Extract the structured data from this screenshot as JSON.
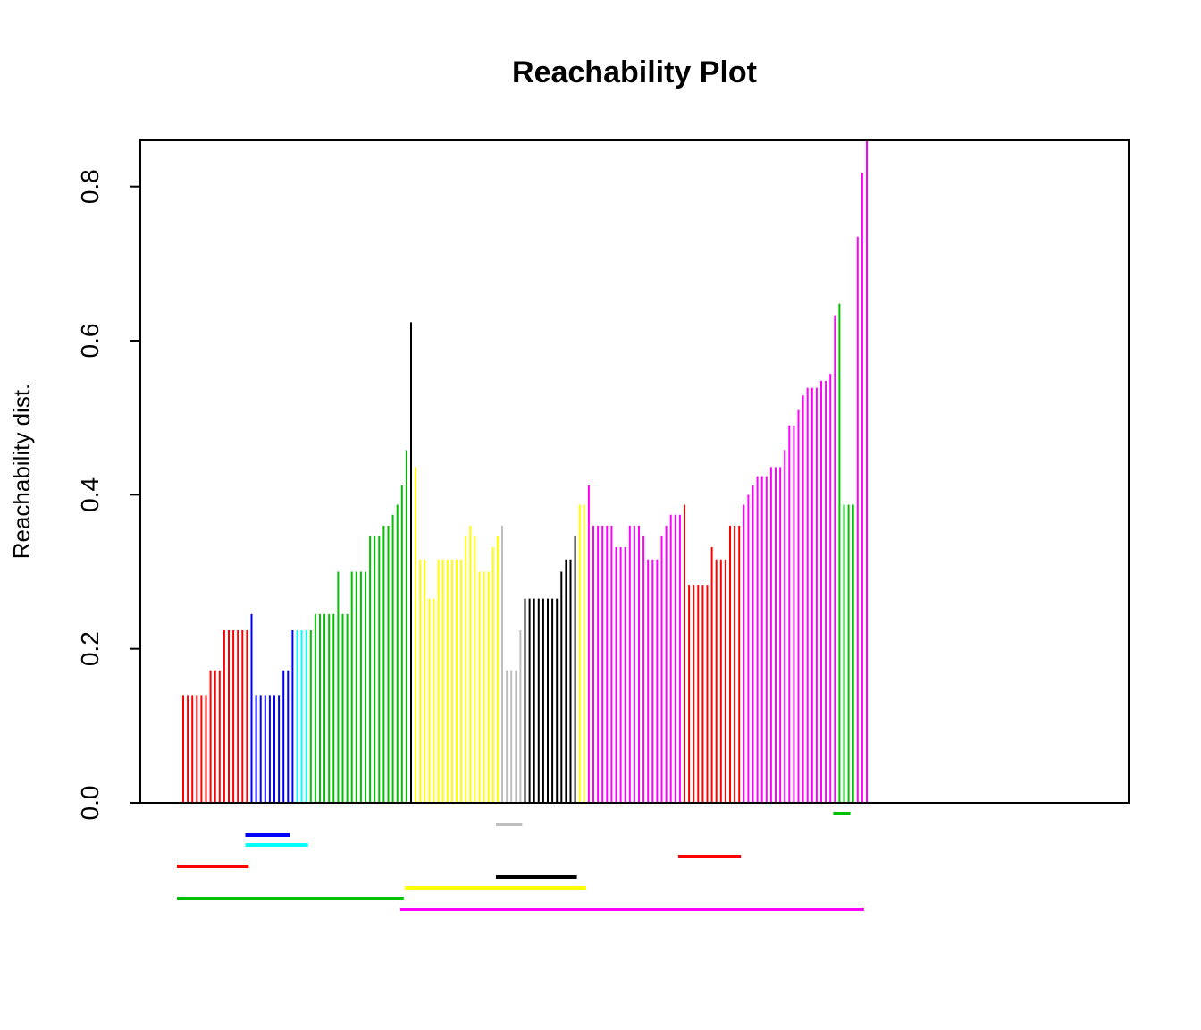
{
  "chart_data": {
    "type": "bar",
    "title": "Reachability Plot",
    "xlabel": "",
    "ylabel": "Reachability dist.",
    "ylim": [
      0,
      0.86
    ],
    "yticks": [
      0.0,
      0.2,
      0.4,
      0.6,
      0.8
    ],
    "ytick_labels": [
      "0.0",
      "0.2",
      "0.4",
      "0.6",
      "0.8"
    ],
    "grid": false,
    "n_points": 150,
    "bars": [
      {
        "c": "red",
        "v": 0.14
      },
      {
        "c": "red",
        "v": 0.14
      },
      {
        "c": "red",
        "v": 0.14
      },
      {
        "c": "red",
        "v": 0.14
      },
      {
        "c": "red",
        "v": 0.14
      },
      {
        "c": "red",
        "v": 0.14
      },
      {
        "c": "red",
        "v": 0.172
      },
      {
        "c": "red",
        "v": 0.172
      },
      {
        "c": "red",
        "v": 0.172
      },
      {
        "c": "red",
        "v": 0.224
      },
      {
        "c": "red",
        "v": 0.224
      },
      {
        "c": "red",
        "v": 0.224
      },
      {
        "c": "red",
        "v": 0.224
      },
      {
        "c": "red",
        "v": 0.224
      },
      {
        "c": "red",
        "v": 0.224
      },
      {
        "c": "blue",
        "v": 0.245
      },
      {
        "c": "blue",
        "v": 0.14
      },
      {
        "c": "blue",
        "v": 0.14
      },
      {
        "c": "blue",
        "v": 0.14
      },
      {
        "c": "blue",
        "v": 0.14
      },
      {
        "c": "blue",
        "v": 0.14
      },
      {
        "c": "blue",
        "v": 0.14
      },
      {
        "c": "blue",
        "v": 0.172
      },
      {
        "c": "blue",
        "v": 0.172
      },
      {
        "c": "blue",
        "v": 0.224
      },
      {
        "c": "cyan",
        "v": 0.224
      },
      {
        "c": "cyan",
        "v": 0.224
      },
      {
        "c": "cyan",
        "v": 0.224
      },
      {
        "c": "green",
        "v": 0.224
      },
      {
        "c": "green",
        "v": 0.245
      },
      {
        "c": "green",
        "v": 0.245
      },
      {
        "c": "green",
        "v": 0.245
      },
      {
        "c": "green",
        "v": 0.245
      },
      {
        "c": "green",
        "v": 0.245
      },
      {
        "c": "green",
        "v": 0.3
      },
      {
        "c": "green",
        "v": 0.245
      },
      {
        "c": "green",
        "v": 0.245
      },
      {
        "c": "green",
        "v": 0.3
      },
      {
        "c": "green",
        "v": 0.3
      },
      {
        "c": "green",
        "v": 0.3
      },
      {
        "c": "green",
        "v": 0.3
      },
      {
        "c": "green",
        "v": 0.346
      },
      {
        "c": "green",
        "v": 0.346
      },
      {
        "c": "green",
        "v": 0.346
      },
      {
        "c": "green",
        "v": 0.36
      },
      {
        "c": "green",
        "v": 0.36
      },
      {
        "c": "green",
        "v": 0.374
      },
      {
        "c": "green",
        "v": 0.387
      },
      {
        "c": "green",
        "v": 0.412
      },
      {
        "c": "green",
        "v": 0.458
      },
      {
        "c": "black",
        "v": 0.624
      },
      {
        "c": "yellow",
        "v": 0.436
      },
      {
        "c": "yellow",
        "v": 0.316
      },
      {
        "c": "yellow",
        "v": 0.316
      },
      {
        "c": "yellow",
        "v": 0.265
      },
      {
        "c": "yellow",
        "v": 0.265
      },
      {
        "c": "yellow",
        "v": 0.316
      },
      {
        "c": "yellow",
        "v": 0.316
      },
      {
        "c": "yellow",
        "v": 0.316
      },
      {
        "c": "yellow",
        "v": 0.316
      },
      {
        "c": "yellow",
        "v": 0.316
      },
      {
        "c": "yellow",
        "v": 0.316
      },
      {
        "c": "yellow",
        "v": 0.346
      },
      {
        "c": "yellow",
        "v": 0.36
      },
      {
        "c": "yellow",
        "v": 0.346
      },
      {
        "c": "yellow",
        "v": 0.3
      },
      {
        "c": "yellow",
        "v": 0.3
      },
      {
        "c": "yellow",
        "v": 0.3
      },
      {
        "c": "yellow",
        "v": 0.332
      },
      {
        "c": "yellow",
        "v": 0.346
      },
      {
        "c": "gray",
        "v": 0.36
      },
      {
        "c": "gray",
        "v": 0.172
      },
      {
        "c": "gray",
        "v": 0.172
      },
      {
        "c": "gray",
        "v": 0.172
      },
      {
        "c": "gray",
        "v": 0.224
      },
      {
        "c": "black",
        "v": 0.265
      },
      {
        "c": "black",
        "v": 0.265
      },
      {
        "c": "black",
        "v": 0.265
      },
      {
        "c": "black",
        "v": 0.265
      },
      {
        "c": "black",
        "v": 0.265
      },
      {
        "c": "black",
        "v": 0.265
      },
      {
        "c": "black",
        "v": 0.265
      },
      {
        "c": "black",
        "v": 0.265
      },
      {
        "c": "black",
        "v": 0.3
      },
      {
        "c": "black",
        "v": 0.316
      },
      {
        "c": "black",
        "v": 0.316
      },
      {
        "c": "black",
        "v": 0.346
      },
      {
        "c": "yellow",
        "v": 0.387
      },
      {
        "c": "yellow",
        "v": 0.387
      },
      {
        "c": "magenta",
        "v": 0.412
      },
      {
        "c": "magenta",
        "v": 0.36
      },
      {
        "c": "magenta",
        "v": 0.36
      },
      {
        "c": "magenta",
        "v": 0.36
      },
      {
        "c": "magenta",
        "v": 0.36
      },
      {
        "c": "magenta",
        "v": 0.36
      },
      {
        "c": "magenta",
        "v": 0.332
      },
      {
        "c": "magenta",
        "v": 0.332
      },
      {
        "c": "magenta",
        "v": 0.332
      },
      {
        "c": "magenta",
        "v": 0.36
      },
      {
        "c": "magenta",
        "v": 0.36
      },
      {
        "c": "magenta",
        "v": 0.36
      },
      {
        "c": "magenta",
        "v": 0.346
      },
      {
        "c": "magenta",
        "v": 0.316
      },
      {
        "c": "magenta",
        "v": 0.316
      },
      {
        "c": "magenta",
        "v": 0.316
      },
      {
        "c": "magenta",
        "v": 0.346
      },
      {
        "c": "magenta",
        "v": 0.36
      },
      {
        "c": "magenta",
        "v": 0.374
      },
      {
        "c": "magenta",
        "v": 0.374
      },
      {
        "c": "magenta",
        "v": 0.374
      },
      {
        "c": "red",
        "v": 0.387
      },
      {
        "c": "red",
        "v": 0.283
      },
      {
        "c": "red",
        "v": 0.283
      },
      {
        "c": "red",
        "v": 0.283
      },
      {
        "c": "red",
        "v": 0.283
      },
      {
        "c": "red",
        "v": 0.283
      },
      {
        "c": "red",
        "v": 0.332
      },
      {
        "c": "red",
        "v": 0.316
      },
      {
        "c": "red",
        "v": 0.316
      },
      {
        "c": "red",
        "v": 0.316
      },
      {
        "c": "red",
        "v": 0.36
      },
      {
        "c": "red",
        "v": 0.36
      },
      {
        "c": "red",
        "v": 0.36
      },
      {
        "c": "magenta",
        "v": 0.387
      },
      {
        "c": "magenta",
        "v": 0.4
      },
      {
        "c": "magenta",
        "v": 0.412
      },
      {
        "c": "magenta",
        "v": 0.424
      },
      {
        "c": "magenta",
        "v": 0.424
      },
      {
        "c": "magenta",
        "v": 0.424
      },
      {
        "c": "magenta",
        "v": 0.436
      },
      {
        "c": "magenta",
        "v": 0.436
      },
      {
        "c": "magenta",
        "v": 0.436
      },
      {
        "c": "magenta",
        "v": 0.458
      },
      {
        "c": "magenta",
        "v": 0.49
      },
      {
        "c": "magenta",
        "v": 0.49
      },
      {
        "c": "magenta",
        "v": 0.51
      },
      {
        "c": "magenta",
        "v": 0.529
      },
      {
        "c": "magenta",
        "v": 0.539
      },
      {
        "c": "magenta",
        "v": 0.539
      },
      {
        "c": "magenta",
        "v": 0.539
      },
      {
        "c": "magenta",
        "v": 0.548
      },
      {
        "c": "magenta",
        "v": 0.548
      },
      {
        "c": "magenta",
        "v": 0.557
      },
      {
        "c": "magenta",
        "v": 0.633
      },
      {
        "c": "green",
        "v": 0.648
      },
      {
        "c": "green",
        "v": 0.387
      },
      {
        "c": "green",
        "v": 0.387
      },
      {
        "c": "green",
        "v": 0.387
      },
      {
        "c": "magenta",
        "v": 0.735
      },
      {
        "c": "magenta",
        "v": 0.818
      },
      {
        "c": "magenta",
        "v": 0.86
      }
    ],
    "cluster_segments": [
      {
        "c": "red",
        "start": 1,
        "end": 15,
        "level": 3
      },
      {
        "c": "blue",
        "start": 16,
        "end": 24,
        "level": 1
      },
      {
        "c": "cyan",
        "start": 16,
        "end": 28,
        "level": 2
      },
      {
        "c": "green",
        "start": 1,
        "end": 49,
        "level": 4
      },
      {
        "c": "gray",
        "start": 71,
        "end": 75,
        "level": 1
      },
      {
        "c": "black",
        "start": 71,
        "end": 87,
        "level": 2
      },
      {
        "c": "yellow",
        "start": 51,
        "end": 89,
        "level": 3
      },
      {
        "c": "magenta",
        "start": 50,
        "end": 150,
        "level": 4
      },
      {
        "c": "red",
        "start": 111,
        "end": 123,
        "level": 2
      },
      {
        "c": "green",
        "start": 145,
        "end": 147,
        "level": 1
      }
    ]
  },
  "colors": {
    "red": "#ff0000",
    "blue": "#0000ff",
    "cyan": "#00ffff",
    "green": "#00c000",
    "black": "#000000",
    "yellow": "#ffff00",
    "gray": "#bebebe",
    "magenta": "#ff00ff"
  }
}
